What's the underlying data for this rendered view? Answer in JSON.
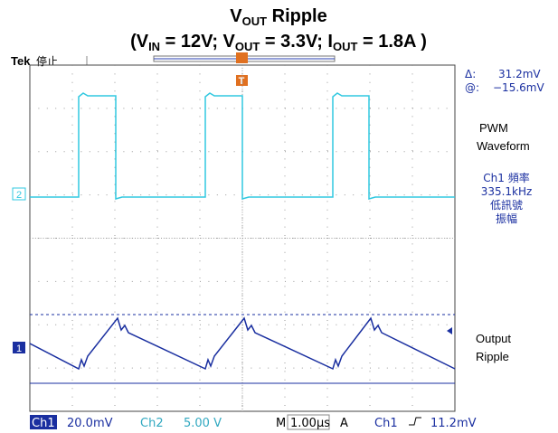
{
  "title": {
    "line1": [
      "V",
      "OUT",
      " Ripple"
    ],
    "line2": [
      "(V",
      "IN",
      " = 12V; V",
      "OUT",
      " = 3.3V; I",
      "OUT",
      " = 1.8A )"
    ]
  },
  "header": {
    "brand": "Tek",
    "status": "停止"
  },
  "markers": {
    "trigger": "T",
    "ch2": "2",
    "ch1": "1"
  },
  "readout": {
    "delta_label": "Δ:",
    "delta": "31.2mV",
    "at_label": "@:",
    "at": "−15.6mV"
  },
  "notes": {
    "pwm": [
      "PWM",
      "Waveform"
    ],
    "freq": [
      "Ch1 頻率",
      "335.1kHz",
      "低訊號",
      "振幅"
    ],
    "output": [
      "Output",
      "Ripple"
    ]
  },
  "status_bar": {
    "ch1": "Ch1",
    "ch1_scale": "20.0mV",
    "ch2": "Ch2",
    "ch2_scale": "5.00 V",
    "m": "M",
    "time": "1.00µs",
    "a": "A",
    "trig_ch": "Ch1",
    "trig_level": "11.2mV"
  }
}
